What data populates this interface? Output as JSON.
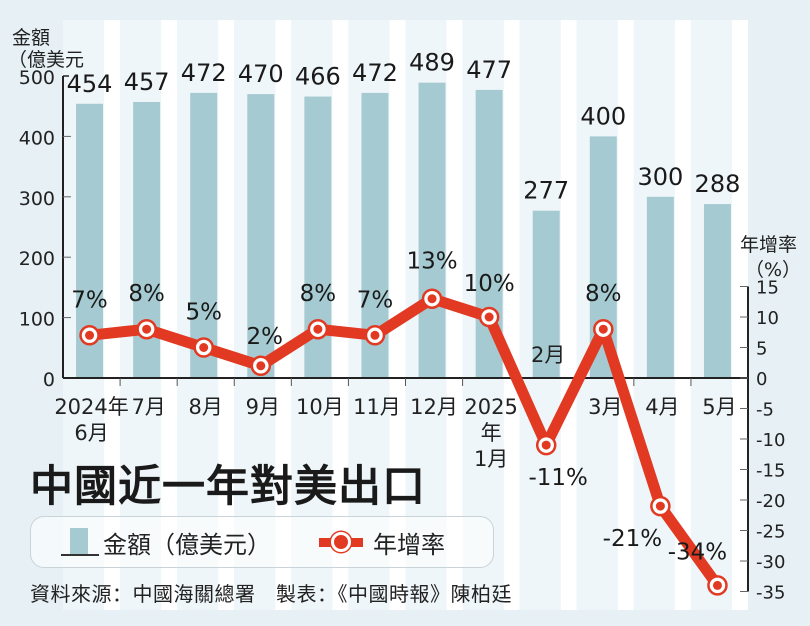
{
  "title": "中國近一年對美出口",
  "left_axis": {
    "label_line1": "金額",
    "label_line2": "（億美元",
    "ticks": [
      "500",
      "400",
      "300",
      "200",
      "100",
      "0"
    ]
  },
  "right_axis": {
    "label_line1": "年增率",
    "label_line2": "（%）",
    "ticks": [
      "15",
      "10",
      "5",
      "0",
      "-5",
      "-10",
      "-15",
      "-20",
      "-25",
      "-30",
      "-35"
    ]
  },
  "x_labels": [
    {
      "lines": [
        "2024年",
        "6月"
      ]
    },
    {
      "lines": [
        "7月"
      ]
    },
    {
      "lines": [
        "8月"
      ]
    },
    {
      "lines": [
        "9月"
      ]
    },
    {
      "lines": [
        "10月"
      ]
    },
    {
      "lines": [
        "11月"
      ]
    },
    {
      "lines": [
        "12月"
      ]
    },
    {
      "lines": [
        "2025",
        "年",
        "1月"
      ]
    },
    {
      "lines": [
        "2月"
      ]
    },
    {
      "lines": [
        "3月"
      ]
    },
    {
      "lines": [
        "4月"
      ]
    },
    {
      "lines": [
        "5月"
      ]
    }
  ],
  "legend": {
    "bar_label": "金額（億美元）",
    "line_label": "年增率"
  },
  "source": "資料來源：中國海關總署　製表：《中國時報》陳柏廷",
  "colors": {
    "bar": "#a6cad1",
    "line": "#e23a22",
    "background": "#e7f1f5",
    "stripe_light": "#eef6f9",
    "stripe_white": "#ffffff"
  },
  "chart_data": {
    "type": "bar+line",
    "title": "中國近一年對美出口",
    "categories": [
      "2024年6月",
      "7月",
      "8月",
      "9月",
      "10月",
      "11月",
      "12月",
      "2025年1月",
      "2月",
      "3月",
      "4月",
      "5月"
    ],
    "series": [
      {
        "name": "金額（億美元）",
        "type": "bar",
        "axis": "left",
        "values": [
          454,
          457,
          472,
          470,
          466,
          472,
          489,
          477,
          277,
          400,
          300,
          288
        ],
        "labels": [
          "454",
          "457",
          "472",
          "470",
          "466",
          "472",
          "489",
          "477",
          "277",
          "400",
          "300",
          "288"
        ]
      },
      {
        "name": "年增率",
        "type": "line",
        "axis": "right",
        "values": [
          7,
          8,
          5,
          2,
          8,
          7,
          13,
          10,
          -11,
          8,
          -21,
          -34
        ],
        "labels": [
          "7%",
          "8%",
          "5%",
          "2%",
          "8%",
          "7%",
          "13%",
          "10%",
          "-11%",
          "8%",
          "-21%",
          "-34%"
        ]
      }
    ],
    "ylabel_left": "金額（億美元）",
    "ylim_left": [
      0,
      500
    ],
    "ylabel_right": "年增率（%）",
    "ylim_right": [
      -35,
      15
    ],
    "legend_position": "bottom-left",
    "source": "資料來源：中國海關總署　製表：《中國時報》陳柏廷"
  }
}
